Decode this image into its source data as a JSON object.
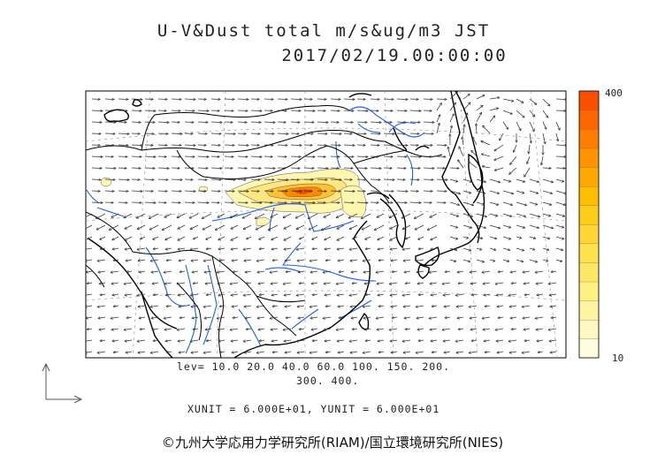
{
  "header": {
    "title": "U-V&Dust total m/s&ug/m3 JST",
    "datetime": "2017/02/19.00:00:00"
  },
  "colorbar": {
    "max_label": "400",
    "min_label": "10",
    "colors": [
      "#fffce0",
      "#fff8c0",
      "#fff3a0",
      "#ffee80",
      "#ffe766",
      "#ffe04d",
      "#ffd633",
      "#ffcc1a",
      "#ffbf00",
      "#ffa800",
      "#ff9300",
      "#ff7e00",
      "#ff6600",
      "#f85000"
    ]
  },
  "levels": {
    "line1": "lev= 10.0 20.0 40.0 60.0 100. 150. 200.",
    "line2": "300. 400."
  },
  "units": {
    "text": "XUNIT = 6.000E+01, YUNIT = 6.000E+01"
  },
  "credit": {
    "text": "©九州大学応用力学研究所(RIAM)/国立環境研究所(NIES)"
  },
  "colors": {
    "coast": "#000000",
    "river": "#1a5cff",
    "grid": "#888888",
    "dust_high": "#e85000",
    "dust_low": "#fff7b0"
  }
}
